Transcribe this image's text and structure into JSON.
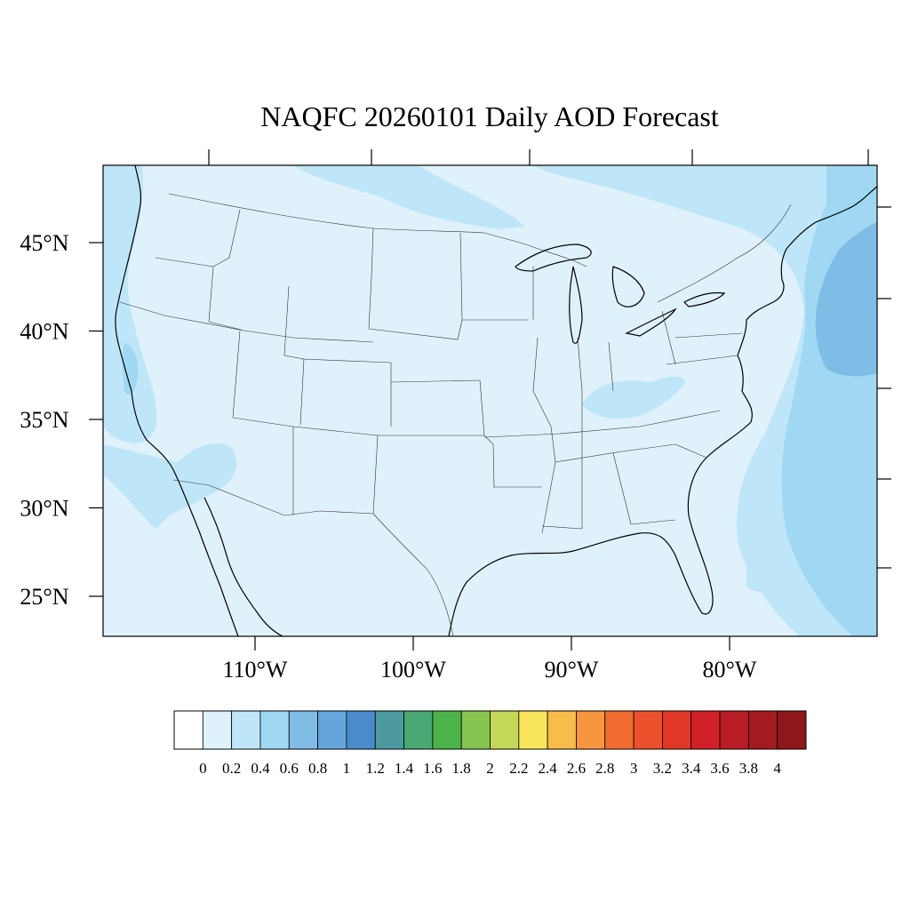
{
  "title": "NAQFC 20260101 Daily AOD Forecast",
  "map": {
    "region": "CONUS",
    "lat_range": [
      22.5,
      49.2
    ],
    "lon_range": [
      -119,
      -70.5
    ],
    "lat_labels": [
      "45°N",
      "40°N",
      "35°N",
      "30°N",
      "25°N"
    ],
    "lat_values": [
      45,
      40,
      35,
      30,
      25
    ],
    "lon_labels": [
      "110°W",
      "100°W",
      "90°W",
      "80°W"
    ],
    "lon_values": [
      -110,
      -100,
      -90,
      -80
    ],
    "background_color": "#dff1fb"
  },
  "colorbar": {
    "tick_labels": [
      "0",
      "0.2",
      "0.4",
      "0.6",
      "0.8",
      "1",
      "1.2",
      "1.4",
      "1.6",
      "1.8",
      "2",
      "2.2",
      "2.4",
      "2.6",
      "2.8",
      "3",
      "3.2",
      "3.4",
      "3.6",
      "3.8",
      "4"
    ],
    "colors": [
      "#ffffff",
      "#dff1fb",
      "#bfe6f8",
      "#a0d8f3",
      "#80bde6",
      "#64a6db",
      "#4a8ccb",
      "#4c9aa0",
      "#4aa874",
      "#4bb34a",
      "#86c54f",
      "#c4d758",
      "#f8e55c",
      "#f7bd4a",
      "#f6963e",
      "#f26b30",
      "#ea502c",
      "#e03727",
      "#d12027",
      "#b81c24",
      "#a31b21",
      "#8e171b"
    ]
  }
}
